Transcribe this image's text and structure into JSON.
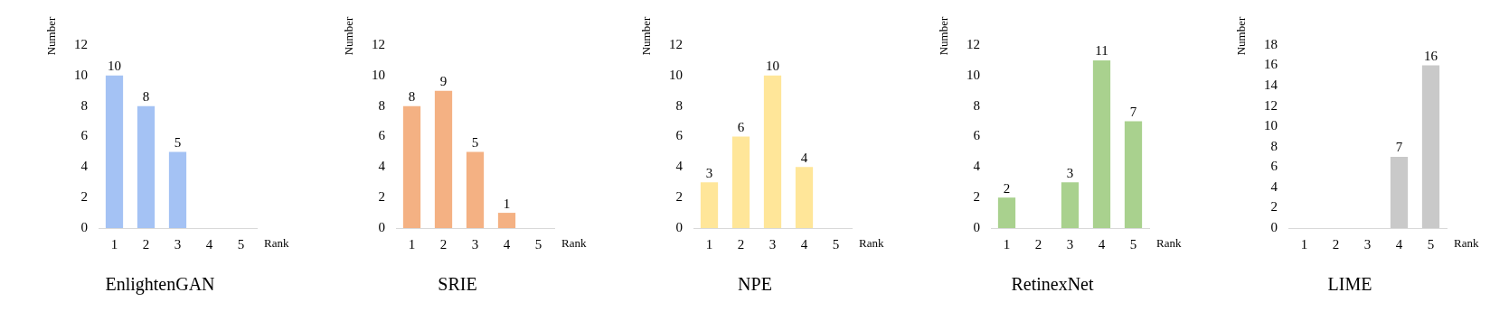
{
  "chart_data": [
    {
      "type": "bar",
      "title": "EnlightenGAN",
      "xlabel": "Rank",
      "ylabel": "Number",
      "categories": [
        "1",
        "2",
        "3",
        "4",
        "5"
      ],
      "values": [
        10,
        8,
        5,
        0,
        0
      ],
      "color": "#a4c2f4",
      "value_labels": [
        "10",
        "8",
        "5",
        null,
        null
      ],
      "ylim": [
        0,
        12
      ],
      "yticks": [
        0,
        2,
        4,
        6,
        8,
        10,
        12
      ],
      "grid": false,
      "legend": false
    },
    {
      "type": "bar",
      "title": "SRIE",
      "xlabel": "Rank",
      "ylabel": "Number",
      "categories": [
        "1",
        "2",
        "3",
        "4",
        "5"
      ],
      "values": [
        8,
        9,
        5,
        1,
        0
      ],
      "color": "#f4b183",
      "value_labels": [
        "8",
        "9",
        "5",
        "1",
        null
      ],
      "ylim": [
        0,
        12
      ],
      "yticks": [
        0,
        2,
        4,
        6,
        8,
        10,
        12
      ],
      "grid": false,
      "legend": false
    },
    {
      "type": "bar",
      "title": "NPE",
      "xlabel": "Rank",
      "ylabel": "Number",
      "categories": [
        "1",
        "2",
        "3",
        "4",
        "5"
      ],
      "values": [
        3,
        6,
        10,
        4,
        0
      ],
      "color": "#ffe699",
      "value_labels": [
        "3",
        "6",
        "10",
        "4",
        null
      ],
      "ylim": [
        0,
        12
      ],
      "yticks": [
        0,
        2,
        4,
        6,
        8,
        10,
        12
      ],
      "grid": false,
      "legend": false
    },
    {
      "type": "bar",
      "title": "RetinexNet",
      "xlabel": "Rank",
      "ylabel": "Number",
      "categories": [
        "1",
        "2",
        "3",
        "4",
        "5"
      ],
      "values": [
        2,
        0,
        3,
        11,
        7
      ],
      "color": "#a9d18e",
      "value_labels": [
        "2",
        null,
        "3",
        "11",
        "7"
      ],
      "ylim": [
        0,
        12
      ],
      "yticks": [
        0,
        2,
        4,
        6,
        8,
        10,
        12
      ],
      "grid": false,
      "legend": false
    },
    {
      "type": "bar",
      "title": "LIME",
      "xlabel": "Rank",
      "ylabel": "Number",
      "categories": [
        "1",
        "2",
        "3",
        "4",
        "5"
      ],
      "values": [
        0,
        0,
        0,
        7,
        16
      ],
      "color": "#c9c9c9",
      "value_labels": [
        null,
        null,
        null,
        "7",
        "16"
      ],
      "ylim": [
        0,
        18
      ],
      "yticks": [
        0,
        2,
        4,
        6,
        8,
        10,
        12,
        14,
        16,
        18
      ],
      "grid": false,
      "legend": false
    }
  ]
}
